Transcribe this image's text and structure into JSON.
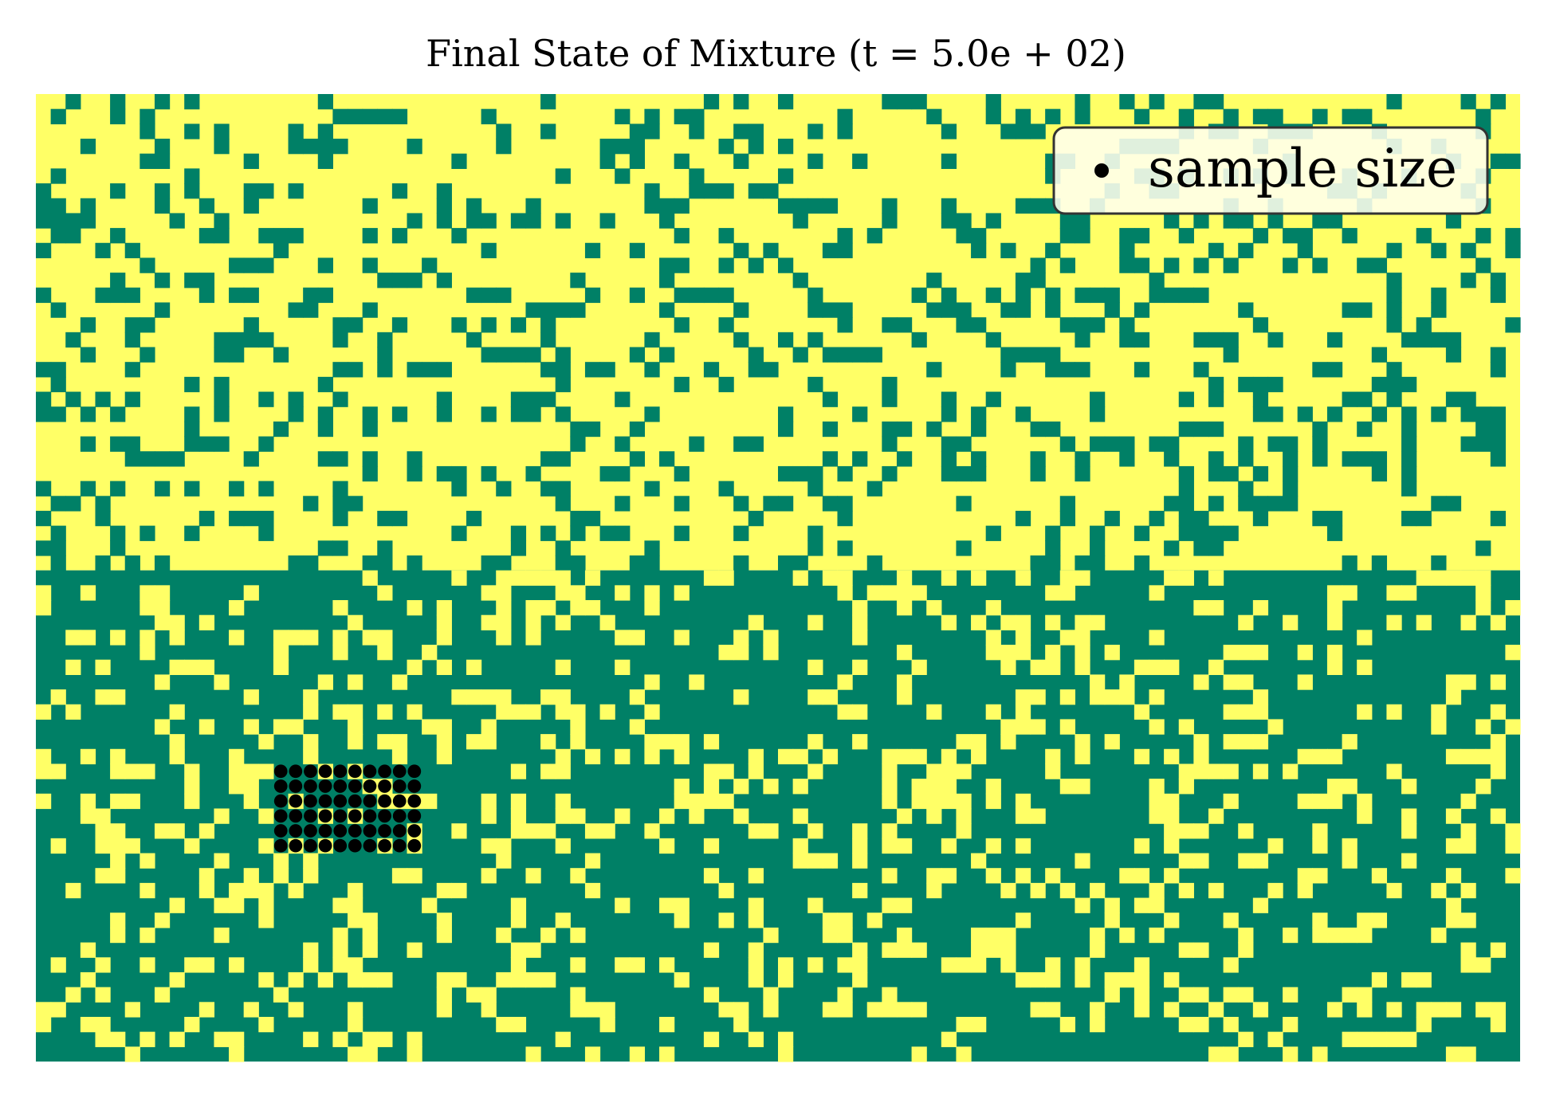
{
  "chart_data": {
    "type": "heatmap",
    "title": "Final State of Mixture (t = 5.0e + 02)",
    "xlabel": "",
    "ylabel": "",
    "grid": false,
    "grid_size": {
      "cols": 100,
      "rows": 65
    },
    "interface_row": 32,
    "top_region": {
      "base_color": "#ffff66",
      "minority_color": "#008066"
    },
    "bottom_region": {
      "base_color": "#008066",
      "minority_color": "#ffff66"
    },
    "minority_fraction": 0.25,
    "sample": {
      "cols": [
        16,
        26
      ],
      "rows": [
        45,
        51
      ],
      "marker": "circle",
      "color": "#000000"
    },
    "legend": {
      "entries": [
        {
          "label": "sample size",
          "marker": "circle",
          "color": "#000000"
        }
      ],
      "placement": "top-right"
    }
  }
}
